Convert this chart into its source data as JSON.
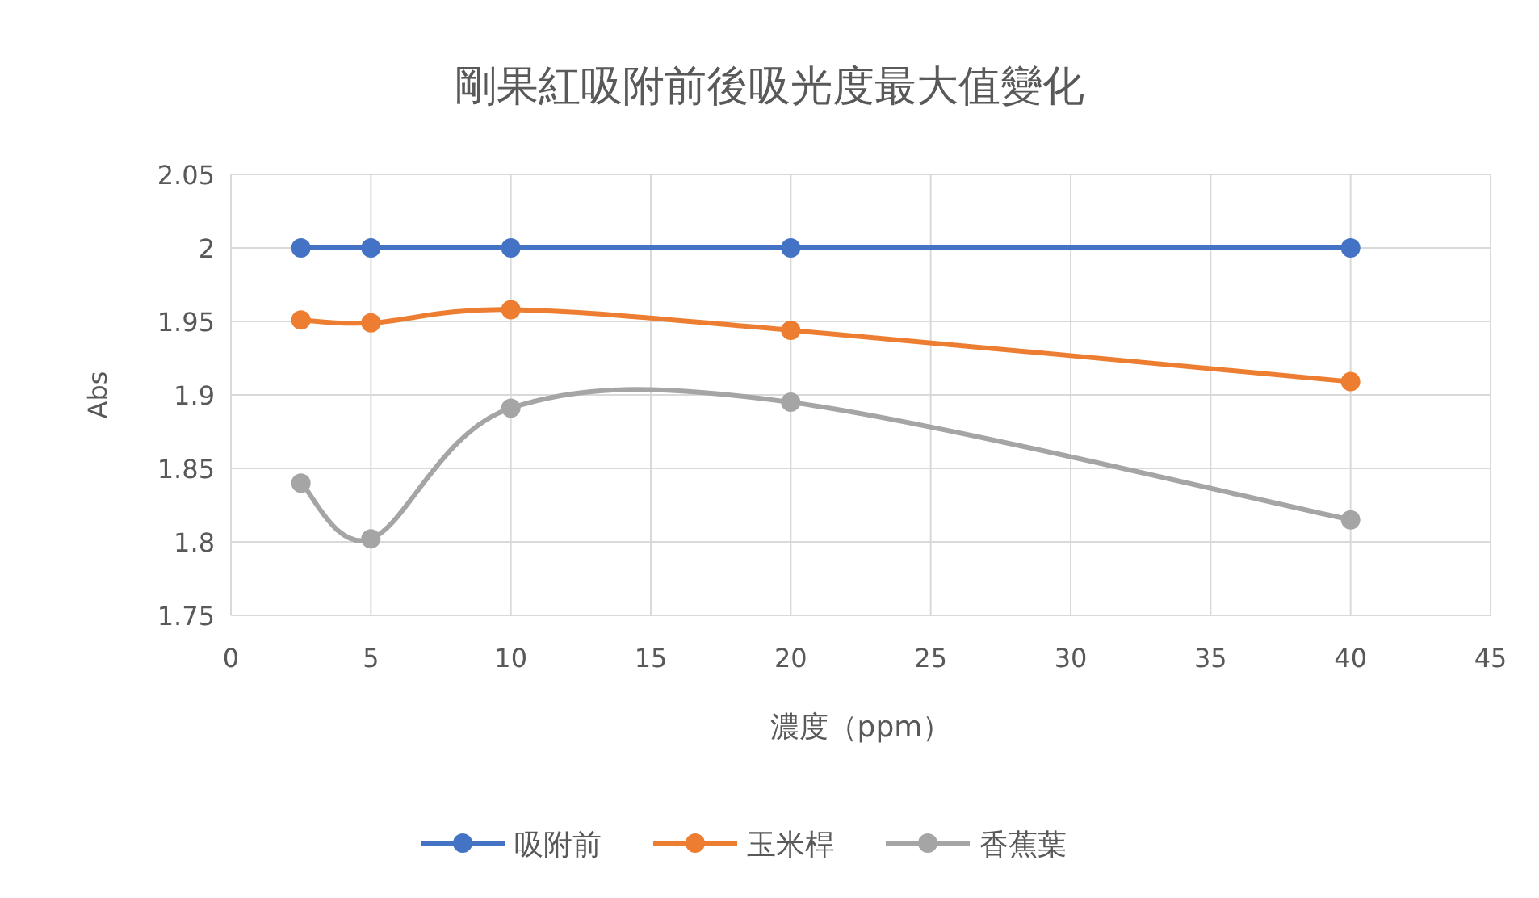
{
  "chart_data": {
    "type": "line",
    "title": "剛果紅吸附前後吸光度最大值變化",
    "xlabel": "濃度（ppm）",
    "ylabel": "Abs",
    "x": [
      2.5,
      5,
      10,
      20,
      40
    ],
    "series": [
      {
        "name": "吸附前",
        "color": "#4472c4",
        "values": [
          2,
          2,
          2,
          2,
          2
        ]
      },
      {
        "name": "玉米桿",
        "color": "#ed7d31",
        "values": [
          1.951,
          1.949,
          1.958,
          1.944,
          1.909
        ]
      },
      {
        "name": "香蕉葉",
        "color": "#a5a5a5",
        "values": [
          1.84,
          1.802,
          1.891,
          1.895,
          1.815
        ]
      }
    ],
    "xlim": [
      0,
      45
    ],
    "xticks": [
      0,
      5,
      10,
      15,
      20,
      25,
      30,
      35,
      40,
      45
    ],
    "ylim": [
      1.75,
      2.05
    ],
    "yticks": [
      1.75,
      1.8,
      1.85,
      1.9,
      1.95,
      2,
      2.05
    ],
    "grid": true,
    "legend": "bottom",
    "marker": "circle",
    "line_style": "solid"
  }
}
